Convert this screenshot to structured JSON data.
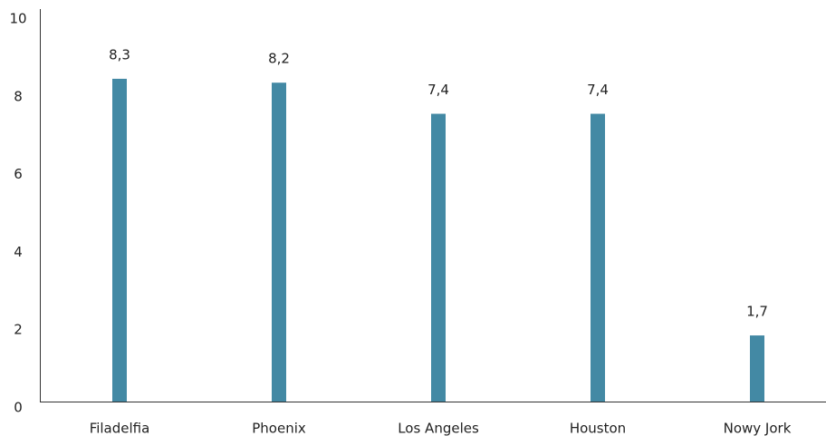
{
  "chart_data": {
    "type": "bar",
    "categories": [
      "Filadelfia",
      "Phoenix",
      "Los Angeles",
      "Houston",
      "Nowy Jork"
    ],
    "values": [
      8.3,
      8.2,
      7.4,
      7.4,
      1.7
    ],
    "value_labels": [
      "8,3",
      "8,2",
      "7,4",
      "7,4",
      "1,7"
    ],
    "color": "#4389a4",
    "ylim": [
      0,
      10
    ],
    "yticks": [
      0,
      2,
      4,
      6,
      8,
      10
    ],
    "grid": false
  }
}
